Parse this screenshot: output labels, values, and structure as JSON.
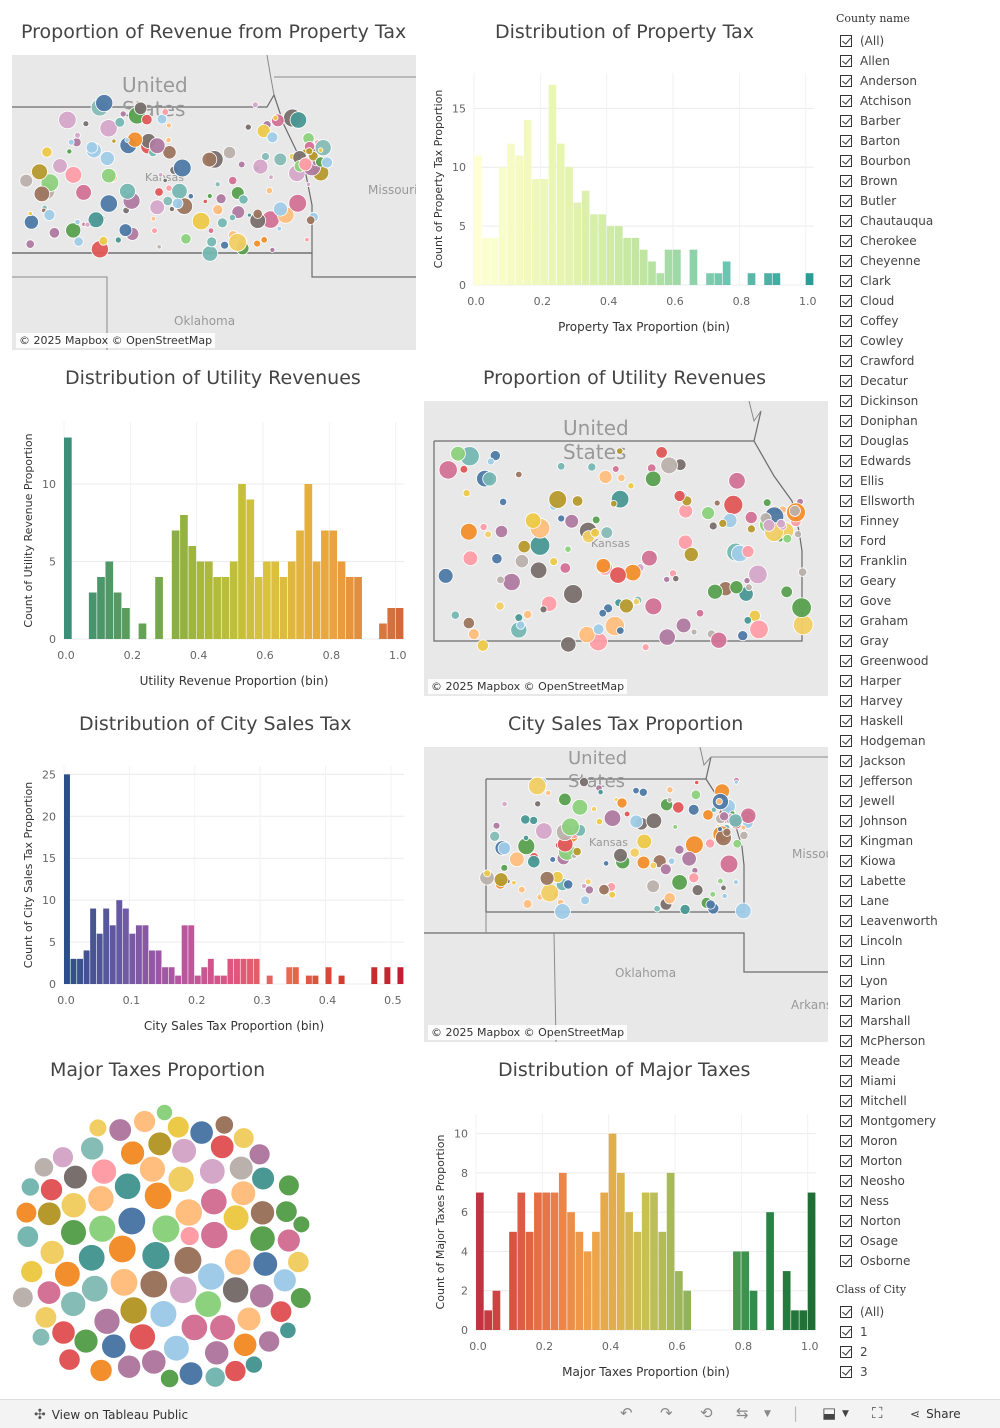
{
  "titles": {
    "prop_map": "Proportion of Revenue from Property Tax",
    "prop_hist": "Distribution of Property Tax",
    "util_hist": "Distribution of Utility Revenues",
    "util_map": "Proportion of Utility Revenues",
    "city_hist": "Distribution of City Sales Tax",
    "city_map": "City Sales Tax Proportion",
    "major_bubble": "Major Taxes Proportion",
    "major_hist": "Distribution of Major Taxes"
  },
  "map": {
    "attribution": "© 2025 Mapbox  © OpenStreetMap",
    "us_label_1": "United",
    "us_label_2": "States",
    "kansas": "Kansas",
    "missouri": "Missouri",
    "oklahoma": "Oklahoma",
    "arkansas": "Arkansas"
  },
  "chart_data": [
    {
      "id": "prop_hist",
      "type": "bar",
      "title": "Distribution of Property Tax",
      "xlabel": "Property Tax Proportion (bin)",
      "ylabel": "Count of Property Tax Proportion",
      "xlim": [
        0,
        1.025
      ],
      "ylim": [
        0,
        18
      ],
      "bin_width": 0.025,
      "xticks": [
        0.0,
        0.2,
        0.4,
        0.6,
        0.8,
        1.0
      ],
      "xtick_labels": [
        "0.0",
        "0.2",
        "0.4",
        "0.6",
        "0.8",
        "1.0"
      ],
      "yticks": [
        0,
        5,
        10,
        15
      ],
      "bin_starts": [
        0.0,
        0.025,
        0.05,
        0.075,
        0.1,
        0.125,
        0.15,
        0.175,
        0.2,
        0.225,
        0.25,
        0.275,
        0.3,
        0.325,
        0.35,
        0.375,
        0.4,
        0.425,
        0.45,
        0.475,
        0.5,
        0.525,
        0.55,
        0.575,
        0.6,
        0.625,
        0.65,
        0.675,
        0.7,
        0.725,
        0.75,
        0.775,
        0.8,
        0.825,
        0.85,
        0.875,
        0.9,
        0.925,
        0.95,
        0.975,
        1.0
      ],
      "values": [
        11,
        4,
        4,
        10,
        12,
        11,
        14,
        9,
        9,
        17,
        12,
        10,
        7,
        8,
        6,
        6,
        5,
        5,
        4,
        4,
        3,
        2,
        1,
        3,
        3,
        0,
        3,
        0,
        1,
        1,
        2,
        0,
        0,
        1,
        0,
        1,
        1,
        0,
        0,
        0,
        1
      ],
      "colormap": "yellow-to-teal"
    },
    {
      "id": "util_hist",
      "type": "bar",
      "title": "Distribution of Utility Revenues",
      "xlabel": "Utility Revenue Proportion (bin)",
      "ylabel": "Count of Utility Revenue Proportion",
      "xlim": [
        0,
        1.025
      ],
      "ylim": [
        0,
        14
      ],
      "bin_width": 0.025,
      "xticks": [
        0.0,
        0.2,
        0.4,
        0.6,
        0.8,
        1.0
      ],
      "xtick_labels": [
        "0.0",
        "0.2",
        "0.4",
        "0.6",
        "0.8",
        "1.0"
      ],
      "yticks": [
        0,
        5,
        10
      ],
      "bin_starts": [
        0.0,
        0.025,
        0.05,
        0.075,
        0.1,
        0.125,
        0.15,
        0.175,
        0.2,
        0.225,
        0.25,
        0.275,
        0.3,
        0.325,
        0.35,
        0.375,
        0.4,
        0.425,
        0.45,
        0.475,
        0.5,
        0.525,
        0.55,
        0.575,
        0.6,
        0.625,
        0.65,
        0.675,
        0.7,
        0.725,
        0.75,
        0.775,
        0.8,
        0.825,
        0.85,
        0.875,
        0.9,
        0.925,
        0.95,
        0.975,
        1.0
      ],
      "values": [
        13,
        0,
        0,
        3,
        4,
        5,
        3,
        2,
        0,
        1,
        0,
        4,
        0,
        7,
        8,
        6,
        5,
        5,
        4,
        4,
        5,
        10,
        9,
        4,
        5,
        5,
        4,
        5,
        7,
        10,
        5,
        7,
        7,
        5,
        4,
        4,
        0,
        0,
        1,
        2,
        2
      ],
      "colormap": "green-to-orange"
    },
    {
      "id": "city_hist",
      "type": "bar",
      "title": "Distribution of City Sales Tax",
      "xlabel": "City Sales Tax Proportion (bin)",
      "ylabel": "Count of City Sales Tax Proportion",
      "xlim": [
        0,
        0.52
      ],
      "ylim": [
        0,
        26
      ],
      "bin_width": 0.01,
      "xticks": [
        0.0,
        0.1,
        0.2,
        0.3,
        0.4,
        0.5
      ],
      "xtick_labels": [
        "0.0",
        "0.1",
        "0.2",
        "0.3",
        "0.4",
        "0.5"
      ],
      "yticks": [
        0,
        5,
        10,
        15,
        20,
        25
      ],
      "bin_starts": [
        0.0,
        0.01,
        0.02,
        0.03,
        0.04,
        0.05,
        0.06,
        0.07,
        0.08,
        0.09,
        0.1,
        0.11,
        0.12,
        0.13,
        0.14,
        0.15,
        0.16,
        0.17,
        0.18,
        0.19,
        0.2,
        0.21,
        0.22,
        0.23,
        0.24,
        0.25,
        0.26,
        0.27,
        0.28,
        0.29,
        0.3,
        0.31,
        0.32,
        0.33,
        0.34,
        0.35,
        0.36,
        0.37,
        0.38,
        0.39,
        0.4,
        0.41,
        0.42,
        0.43,
        0.44,
        0.45,
        0.46,
        0.47,
        0.48,
        0.49,
        0.5,
        0.51
      ],
      "values": [
        25,
        3,
        3,
        4,
        9,
        6,
        9,
        7,
        10,
        9,
        6,
        7,
        7,
        4,
        4,
        2,
        2,
        1,
        7,
        7,
        1,
        2,
        3,
        1,
        1,
        3,
        3,
        3,
        3,
        3,
        0,
        1,
        0,
        0,
        2,
        2,
        0,
        1,
        1,
        0,
        2,
        0,
        1,
        0,
        0,
        0,
        0,
        2,
        0,
        2,
        0,
        2
      ],
      "colormap": "blue-to-red"
    },
    {
      "id": "major_hist",
      "type": "bar",
      "title": "Distribution of Major Taxes",
      "xlabel": "Major Taxes Proportion (bin)",
      "ylabel": "Count of Major Taxes Proportion",
      "xlim": [
        0,
        1.025
      ],
      "ylim": [
        0,
        11
      ],
      "bin_width": 0.025,
      "xticks": [
        0.0,
        0.2,
        0.4,
        0.6,
        0.8,
        1.0
      ],
      "xtick_labels": [
        "0.0",
        "0.2",
        "0.4",
        "0.6",
        "0.8",
        "1.0"
      ],
      "yticks": [
        0,
        2,
        4,
        6,
        8,
        10
      ],
      "bin_starts": [
        0.0,
        0.025,
        0.05,
        0.075,
        0.1,
        0.125,
        0.15,
        0.175,
        0.2,
        0.225,
        0.25,
        0.275,
        0.3,
        0.325,
        0.35,
        0.375,
        0.4,
        0.425,
        0.45,
        0.475,
        0.5,
        0.525,
        0.55,
        0.575,
        0.6,
        0.625,
        0.65,
        0.675,
        0.7,
        0.725,
        0.75,
        0.775,
        0.8,
        0.825,
        0.85,
        0.875,
        0.9,
        0.925,
        0.95,
        0.975,
        1.0
      ],
      "values": [
        7,
        1,
        2,
        0,
        5,
        7,
        5,
        7,
        7,
        7,
        8,
        6,
        5,
        4,
        5,
        7,
        10,
        8,
        6,
        5,
        7,
        7,
        5,
        8,
        3,
        2,
        0,
        0,
        0,
        0,
        0,
        4,
        4,
        2,
        0,
        6,
        0,
        3,
        1,
        1,
        7
      ],
      "colormap": "red-to-green"
    }
  ],
  "filters": {
    "county": {
      "header": "County name",
      "items": [
        "(All)",
        "Allen",
        "Anderson",
        "Atchison",
        "Barber",
        "Barton",
        "Bourbon",
        "Brown",
        "Butler",
        "Chautauqua",
        "Cherokee",
        "Cheyenne",
        "Clark",
        "Cloud",
        "Coffey",
        "Cowley",
        "Crawford",
        "Decatur",
        "Dickinson",
        "Doniphan",
        "Douglas",
        "Edwards",
        "Ellis",
        "Ellsworth",
        "Finney",
        "Ford",
        "Franklin",
        "Geary",
        "Gove",
        "Graham",
        "Gray",
        "Greenwood",
        "Harper",
        "Harvey",
        "Haskell",
        "Hodgeman",
        "Jackson",
        "Jefferson",
        "Jewell",
        "Johnson",
        "Kingman",
        "Kiowa",
        "Labette",
        "Lane",
        "Leavenworth",
        "Lincoln",
        "Linn",
        "Lyon",
        "Marion",
        "Marshall",
        "McPherson",
        "Meade",
        "Miami",
        "Mitchell",
        "Montgomery",
        "Moron",
        "Morton",
        "Neosho",
        "Ness",
        "Norton",
        "Osage",
        "Osborne"
      ]
    },
    "city_class": {
      "header": "Class of City",
      "items": [
        "(All)",
        "1",
        "2",
        "3"
      ]
    }
  },
  "footer": {
    "view_label": "View on Tableau Public",
    "share_label": "Share"
  },
  "palette": [
    "#4e79a7",
    "#f28e2b",
    "#e15759",
    "#76b7b2",
    "#59a14f",
    "#edc948",
    "#b07aa1",
    "#ff9da7",
    "#9c755f",
    "#bab0ac",
    "#8cd17d",
    "#a0cbe8",
    "#ffbe7d",
    "#86bcb6",
    "#d4a6c8",
    "#79706e",
    "#499894",
    "#d37295",
    "#b6992d",
    "#f1ce63"
  ]
}
